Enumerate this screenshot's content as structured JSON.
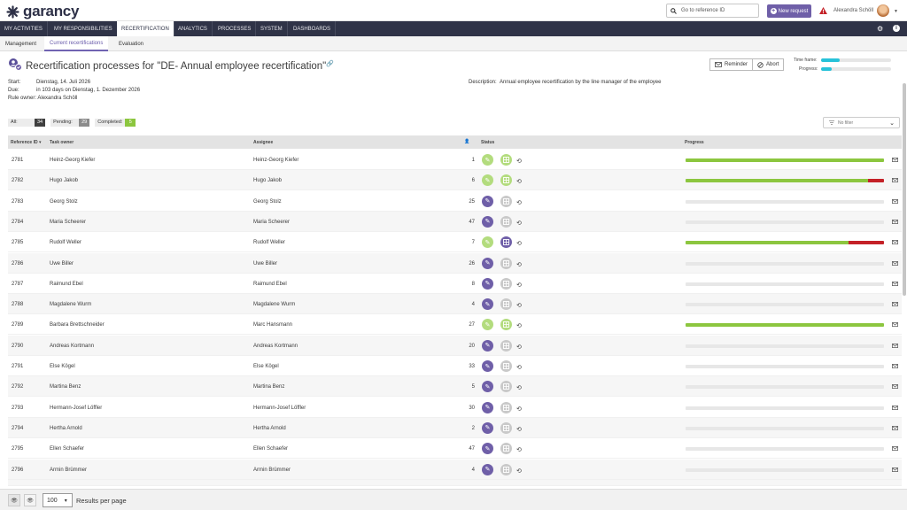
{
  "app": {
    "brand": "garancy"
  },
  "header": {
    "search_placeholder": "Go to reference ID",
    "new_request": "New request",
    "user": "Alexandra Schöll"
  },
  "main_nav": [
    "MY ACTIVITIES",
    "MY RESPONSIBILITIES",
    "RECERTIFICATION",
    "ANALYTICS",
    "PROCESSES",
    "SYSTEM",
    "DASHBOARDS"
  ],
  "main_nav_active": "RECERTIFICATION",
  "sub_nav": [
    "Management",
    "Current recertifications",
    "Evaluation"
  ],
  "sub_nav_active": "Current recertifications",
  "page": {
    "title": "Recertification processes for \"DE- Annual employee recertification\"",
    "reminder": "Reminder",
    "abort": "Abort",
    "timeframe_label": "Time frame:",
    "progress_label": "Progress:",
    "timeframe_fraction": 0.27,
    "progress_fraction": 0.15
  },
  "meta": {
    "start_label": "Start:",
    "start": "Dienstag, 14. Juli 2026",
    "due_label": "Due:",
    "due": "in 103 days on Dienstag, 1. Dezember 2026",
    "owner_label": "Rule owner:",
    "owner": "Alexandra Schöll",
    "description_label": "Description:",
    "description": "Annual employee recertification by the line manager of the employee"
  },
  "counters": {
    "all_label": "All:",
    "all": "34",
    "pending_label": "Pending:",
    "pending": "29",
    "completed_label": "Completed:",
    "completed": "5"
  },
  "filter": {
    "placeholder": "No filter"
  },
  "table": {
    "headers": {
      "ref": "Reference ID",
      "owner": "Task owner",
      "assignee": "Assignee",
      "status": "Status",
      "progress": "Progress"
    },
    "rows": [
      {
        "id": "2781",
        "owner": "Heinz-Georg Kiefer",
        "assignee": "Heinz-Georg Kiefer",
        "count": "1",
        "done": true,
        "approve": "done",
        "green": 1.0,
        "red": 0
      },
      {
        "id": "2782",
        "owner": "Hugo Jakob",
        "assignee": "Hugo Jakob",
        "count": "6",
        "done": true,
        "approve": "done",
        "green": 0.92,
        "red": 0.08
      },
      {
        "id": "2783",
        "owner": "Georg Stolz",
        "assignee": "Georg Stolz",
        "count": "25",
        "done": false,
        "approve": "grey",
        "green": 0,
        "red": 0
      },
      {
        "id": "2784",
        "owner": "Maria Scheerer",
        "assignee": "Maria Scheerer",
        "count": "47",
        "done": false,
        "approve": "grey",
        "green": 0,
        "red": 0
      },
      {
        "id": "2785",
        "owner": "Rudolf Weller",
        "assignee": "Rudolf Weller",
        "count": "7",
        "done": true,
        "approve": "active",
        "green": 0.82,
        "red": 0.18
      },
      {
        "id": "2786",
        "owner": "Uwe Biller",
        "assignee": "Uwe Biller",
        "count": "26",
        "done": false,
        "approve": "grey",
        "green": 0,
        "red": 0
      },
      {
        "id": "2787",
        "owner": "Raimund Ebel",
        "assignee": "Raimund Ebel",
        "count": "8",
        "done": false,
        "approve": "grey",
        "green": 0,
        "red": 0
      },
      {
        "id": "2788",
        "owner": "Magdalene Wurm",
        "assignee": "Magdalene Wurm",
        "count": "4",
        "done": false,
        "approve": "grey",
        "green": 0,
        "red": 0
      },
      {
        "id": "2789",
        "owner": "Barbara Brettschneider",
        "assignee": "Marc Hansmann",
        "count": "27",
        "done": true,
        "approve": "done",
        "green": 1.0,
        "red": 0
      },
      {
        "id": "2790",
        "owner": "Andreas Kortmann",
        "assignee": "Andreas Kortmann",
        "count": "20",
        "done": false,
        "approve": "grey",
        "green": 0,
        "red": 0
      },
      {
        "id": "2791",
        "owner": "Else Kögel",
        "assignee": "Else Kögel",
        "count": "33",
        "done": false,
        "approve": "grey",
        "green": 0,
        "red": 0
      },
      {
        "id": "2792",
        "owner": "Martina Benz",
        "assignee": "Martina Benz",
        "count": "5",
        "done": false,
        "approve": "grey",
        "green": 0,
        "red": 0
      },
      {
        "id": "2793",
        "owner": "Hermann-Josef Löffler",
        "assignee": "Hermann-Josef Löffler",
        "count": "30",
        "done": false,
        "approve": "grey",
        "green": 0,
        "red": 0
      },
      {
        "id": "2794",
        "owner": "Hertha Arnold",
        "assignee": "Hertha Arnold",
        "count": "2",
        "done": false,
        "approve": "grey",
        "green": 0,
        "red": 0
      },
      {
        "id": "2795",
        "owner": "Ellen Schaefer",
        "assignee": "Ellen Schaefer",
        "count": "47",
        "done": false,
        "approve": "grey",
        "green": 0,
        "red": 0
      },
      {
        "id": "2796",
        "owner": "Armin Brümmer",
        "assignee": "Armin Brümmer",
        "count": "4",
        "done": false,
        "approve": "grey",
        "green": 0,
        "red": 0
      }
    ]
  },
  "footer": {
    "page_size": "100",
    "results_per_page": "Results per page"
  },
  "colors": {
    "accent": "#6f5fa8",
    "nav": "#2f3347",
    "green": "#8cc63f",
    "red": "#c42127",
    "cyan": "#27c2d9"
  }
}
